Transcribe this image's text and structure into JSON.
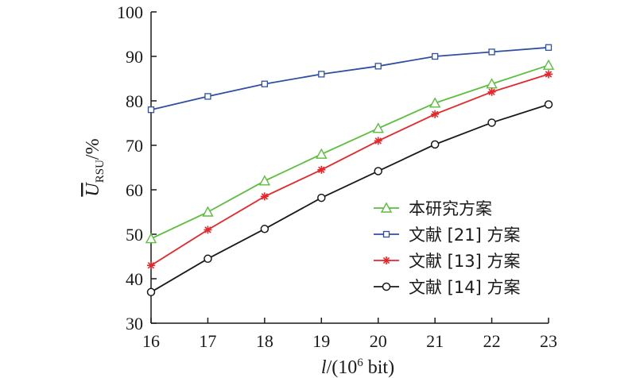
{
  "chart_data": {
    "type": "line",
    "x": [
      16,
      17,
      18,
      19,
      20,
      21,
      22,
      23
    ],
    "xlim": [
      16,
      23
    ],
    "ylim": [
      30,
      100
    ],
    "xticks": [
      "16",
      "17",
      "18",
      "19",
      "20",
      "21",
      "22",
      "23"
    ],
    "yticks": [
      "30",
      "40",
      "50",
      "60",
      "70",
      "80",
      "90",
      "100"
    ],
    "xlabel": "l/(10⁶ bit)",
    "ylabel": "U̅RSU/%",
    "grid": false,
    "legend_position": "bottom-right",
    "series": [
      {
        "name": "本研究方案",
        "color": "#5BBE3C",
        "marker": "triangle",
        "values": [
          49,
          55,
          62,
          68,
          73.8,
          79.5,
          83.8,
          88
        ]
      },
      {
        "name": "文献 [21] 方案",
        "color": "#2F4FA2",
        "marker": "square",
        "values": [
          78,
          81,
          83.8,
          86,
          87.8,
          90,
          91,
          92
        ]
      },
      {
        "name": "文献 [13] 方案",
        "color": "#E8262A",
        "marker": "asterisk",
        "values": [
          43,
          51,
          58.5,
          64.5,
          71,
          77,
          82,
          86
        ]
      },
      {
        "name": "文献 [14] 方案",
        "color": "#1A1A1A",
        "marker": "circle",
        "values": [
          37,
          44.5,
          51.2,
          58.2,
          64.2,
          70.2,
          75.1,
          79.2
        ]
      }
    ]
  }
}
